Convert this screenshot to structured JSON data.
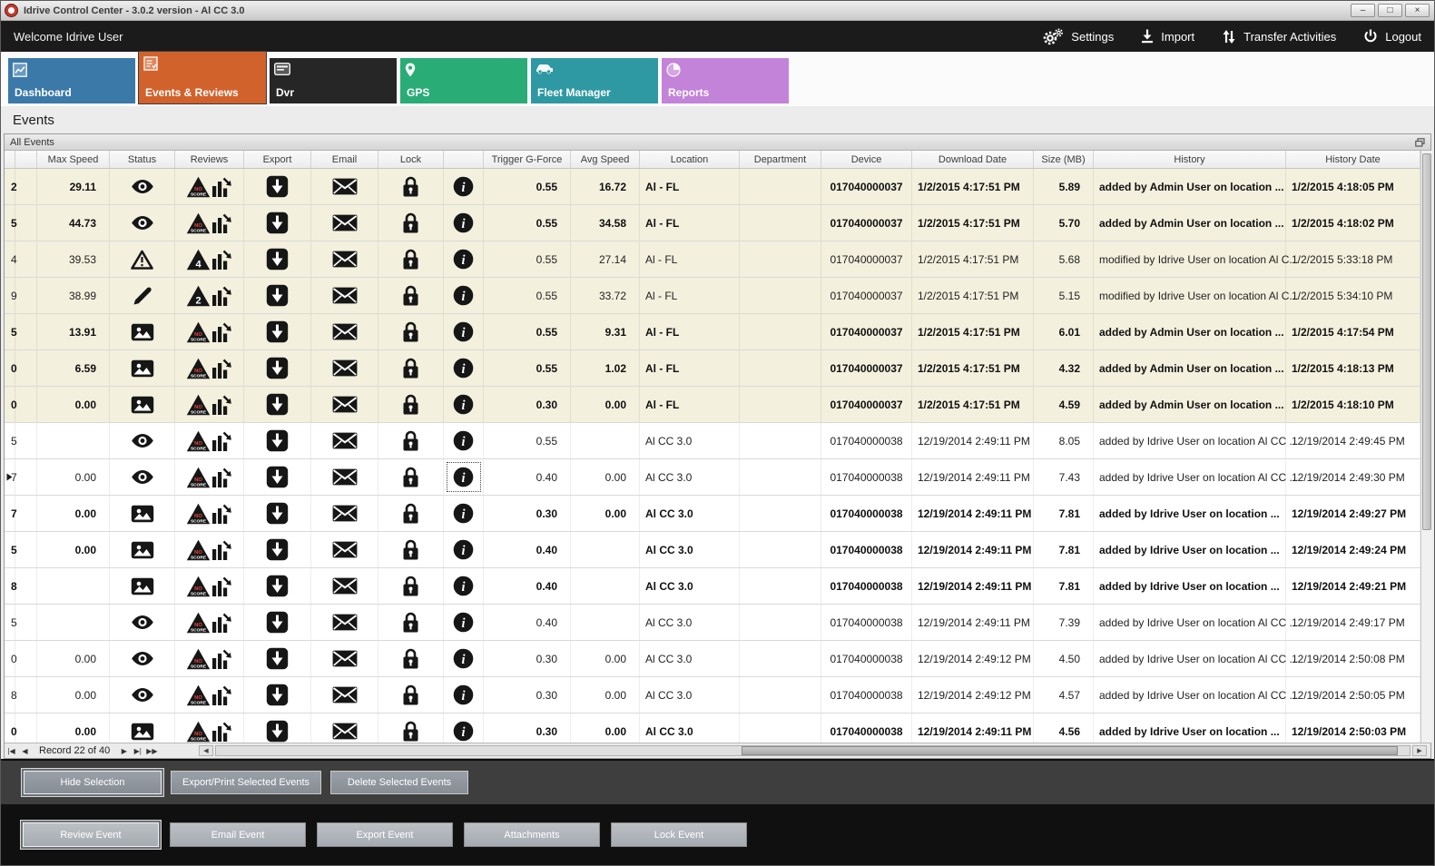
{
  "window": {
    "title": "Idrive Control Center - 3.0.2 version - Al CC 3.0",
    "controls": [
      {
        "name": "minimize",
        "glyph": "–"
      },
      {
        "name": "maximize",
        "glyph": "□"
      },
      {
        "name": "close",
        "glyph": "×"
      }
    ]
  },
  "topbar": {
    "welcome": "Welcome Idrive User",
    "menu": [
      {
        "label": "Settings",
        "icon": "gear-icon"
      },
      {
        "label": "Import",
        "icon": "import-icon"
      },
      {
        "label": "Transfer Activities",
        "icon": "transfer-icon"
      },
      {
        "label": "Logout",
        "icon": "power-icon"
      }
    ]
  },
  "tabs": [
    {
      "label": "Dashboard",
      "color": "#3b79a8",
      "icon": "line-chart-icon",
      "selected": false
    },
    {
      "label": "Events & Reviews",
      "color": "#d2622c",
      "icon": "checklist-icon",
      "selected": true
    },
    {
      "label": "Dvr",
      "color": "#262626",
      "icon": "dvr-icon",
      "selected": false
    },
    {
      "label": "GPS",
      "color": "#2aac77",
      "icon": "map-pin-icon",
      "selected": false
    },
    {
      "label": "Fleet Manager",
      "color": "#2f99a3",
      "icon": "car-icon",
      "selected": false
    },
    {
      "label": "Reports",
      "color": "#c383d9",
      "icon": "pie-chart-icon",
      "selected": false
    }
  ],
  "page": {
    "title": "Events"
  },
  "panel": {
    "title": "All Events",
    "float_icon": "float-panel-icon"
  },
  "table": {
    "columns": [
      "",
      "",
      "Max Speed",
      "Status",
      "Reviews",
      "Export",
      "Email",
      "Lock",
      "",
      "Trigger G-Force",
      "Avg Speed",
      "Location",
      "Department",
      "Device",
      "Download Date",
      "Size (MB)",
      "History",
      "History Date"
    ],
    "action_icons": {
      "export": "export-icon",
      "email": "email-icon",
      "lock": "lock-icon",
      "info": "info-icon"
    },
    "review_icons": [
      "score-triangle-icon",
      "chart-trend-icon"
    ],
    "rows": [
      {
        "id_partial": "2",
        "marker": false,
        "highlight": true,
        "bold": true,
        "max_speed": "29.11",
        "status_icon": "eye-icon",
        "review_badge": "NO SCORE",
        "trigger_g": "0.55",
        "avg_speed": "16.72",
        "location": "Al - FL",
        "department": "",
        "device": "017040000037",
        "download_date": "1/2/2015 4:17:51 PM",
        "size_mb": "5.89",
        "history": "added by Admin User on location ...",
        "history_date": "1/2/2015 4:18:05 PM",
        "info_focused": false
      },
      {
        "id_partial": "5",
        "marker": false,
        "highlight": true,
        "bold": true,
        "max_speed": "44.73",
        "status_icon": "eye-icon",
        "review_badge": "NO SCORE",
        "trigger_g": "0.55",
        "avg_speed": "34.58",
        "location": "Al - FL",
        "department": "",
        "device": "017040000037",
        "download_date": "1/2/2015 4:17:51 PM",
        "size_mb": "5.70",
        "history": "added by Admin User on location ...",
        "history_date": "1/2/2015 4:18:02 PM",
        "info_focused": false
      },
      {
        "id_partial": "4",
        "marker": false,
        "highlight": true,
        "bold": false,
        "max_speed": "39.53",
        "status_icon": "warning-icon",
        "review_badge": "4",
        "trigger_g": "0.55",
        "avg_speed": "27.14",
        "location": "Al - FL",
        "department": "",
        "device": "017040000037",
        "download_date": "1/2/2015 4:17:51 PM",
        "size_mb": "5.68",
        "history": "modified by Idrive User on location Al C...",
        "history_date": "1/2/2015 5:33:18 PM",
        "info_focused": false
      },
      {
        "id_partial": "9",
        "marker": false,
        "highlight": true,
        "bold": false,
        "max_speed": "38.99",
        "status_icon": "pencil-icon",
        "review_badge": "2",
        "trigger_g": "0.55",
        "avg_speed": "33.72",
        "location": "Al - FL",
        "department": "",
        "device": "017040000037",
        "download_date": "1/2/2015 4:17:51 PM",
        "size_mb": "5.15",
        "history": "modified by Idrive User on location Al C...",
        "history_date": "1/2/2015 5:34:10 PM",
        "info_focused": false
      },
      {
        "id_partial": "5",
        "marker": false,
        "highlight": true,
        "bold": true,
        "max_speed": "13.91",
        "status_icon": "photo-icon",
        "review_badge": "NO SCORE",
        "trigger_g": "0.55",
        "avg_speed": "9.31",
        "location": "Al - FL",
        "department": "",
        "device": "017040000037",
        "download_date": "1/2/2015 4:17:51 PM",
        "size_mb": "6.01",
        "history": "added by Admin User on location ...",
        "history_date": "1/2/2015 4:17:54 PM",
        "info_focused": false
      },
      {
        "id_partial": "0",
        "marker": false,
        "highlight": true,
        "bold": true,
        "max_speed": "6.59",
        "status_icon": "photo-icon",
        "review_badge": "NO SCORE",
        "trigger_g": "0.55",
        "avg_speed": "1.02",
        "location": "Al - FL",
        "department": "",
        "device": "017040000037",
        "download_date": "1/2/2015 4:17:51 PM",
        "size_mb": "4.32",
        "history": "added by Admin User on location ...",
        "history_date": "1/2/2015 4:18:13 PM",
        "info_focused": false
      },
      {
        "id_partial": "0",
        "marker": false,
        "highlight": true,
        "bold": true,
        "max_speed": "0.00",
        "status_icon": "photo-icon",
        "review_badge": "NO SCORE",
        "trigger_g": "0.30",
        "avg_speed": "0.00",
        "location": "Al - FL",
        "department": "",
        "device": "017040000037",
        "download_date": "1/2/2015 4:17:51 PM",
        "size_mb": "4.59",
        "history": "added by Admin User on location ...",
        "history_date": "1/2/2015 4:18:10 PM",
        "info_focused": false
      },
      {
        "id_partial": "5",
        "marker": false,
        "highlight": false,
        "bold": false,
        "max_speed": "",
        "status_icon": "eye-icon",
        "review_badge": "NO SCORE",
        "trigger_g": "0.55",
        "avg_speed": "",
        "location": "Al CC 3.0",
        "department": "",
        "device": "017040000038",
        "download_date": "12/19/2014 2:49:11 PM",
        "size_mb": "8.05",
        "history": "added by Idrive User on location Al CC ...",
        "history_date": "12/19/2014 2:49:45 PM",
        "info_focused": false
      },
      {
        "id_partial": "7",
        "marker": true,
        "highlight": false,
        "bold": false,
        "max_speed": "0.00",
        "status_icon": "eye-icon",
        "review_badge": "NO SCORE",
        "trigger_g": "0.40",
        "avg_speed": "0.00",
        "location": "Al CC 3.0",
        "department": "",
        "device": "017040000038",
        "download_date": "12/19/2014 2:49:11 PM",
        "size_mb": "7.43",
        "history": "added by Idrive User on location Al CC ...",
        "history_date": "12/19/2014 2:49:30 PM",
        "info_focused": true
      },
      {
        "id_partial": "7",
        "marker": false,
        "highlight": false,
        "bold": true,
        "max_speed": "0.00",
        "status_icon": "photo-icon",
        "review_badge": "NO SCORE",
        "trigger_g": "0.30",
        "avg_speed": "0.00",
        "location": "Al CC 3.0",
        "department": "",
        "device": "017040000038",
        "download_date": "12/19/2014 2:49:11 PM",
        "size_mb": "7.81",
        "history": "added by Idrive User on location ...",
        "history_date": "12/19/2014 2:49:27 PM",
        "info_focused": false
      },
      {
        "id_partial": "5",
        "marker": false,
        "highlight": false,
        "bold": true,
        "max_speed": "0.00",
        "status_icon": "photo-icon",
        "review_badge": "NO SCORE",
        "trigger_g": "0.40",
        "avg_speed": "",
        "location": "Al CC 3.0",
        "department": "",
        "device": "017040000038",
        "download_date": "12/19/2014 2:49:11 PM",
        "size_mb": "7.81",
        "history": "added by Idrive User on location ...",
        "history_date": "12/19/2014 2:49:24 PM",
        "info_focused": false
      },
      {
        "id_partial": "8",
        "marker": false,
        "highlight": false,
        "bold": true,
        "max_speed": "",
        "status_icon": "photo-icon",
        "review_badge": "NO SCORE",
        "trigger_g": "0.40",
        "avg_speed": "",
        "location": "Al CC 3.0",
        "department": "",
        "device": "017040000038",
        "download_date": "12/19/2014 2:49:11 PM",
        "size_mb": "7.81",
        "history": "added by Idrive User on location ...",
        "history_date": "12/19/2014 2:49:21 PM",
        "info_focused": false
      },
      {
        "id_partial": "5",
        "marker": false,
        "highlight": false,
        "bold": false,
        "max_speed": "",
        "status_icon": "eye-icon",
        "review_badge": "NO SCORE",
        "trigger_g": "0.40",
        "avg_speed": "",
        "location": "Al CC 3.0",
        "department": "",
        "device": "017040000038",
        "download_date": "12/19/2014 2:49:11 PM",
        "size_mb": "7.39",
        "history": "added by Idrive User on location Al CC ...",
        "history_date": "12/19/2014 2:49:17 PM",
        "info_focused": false
      },
      {
        "id_partial": "0",
        "marker": false,
        "highlight": false,
        "bold": false,
        "max_speed": "0.00",
        "status_icon": "eye-icon",
        "review_badge": "NO SCORE",
        "trigger_g": "0.30",
        "avg_speed": "0.00",
        "location": "Al CC 3.0",
        "department": "",
        "device": "017040000038",
        "download_date": "12/19/2014 2:49:12 PM",
        "size_mb": "4.50",
        "history": "added by Idrive User on location Al CC ...",
        "history_date": "12/19/2014 2:50:08 PM",
        "info_focused": false
      },
      {
        "id_partial": "8",
        "marker": false,
        "highlight": false,
        "bold": false,
        "max_speed": "0.00",
        "status_icon": "eye-icon",
        "review_badge": "NO SCORE",
        "trigger_g": "0.30",
        "avg_speed": "0.00",
        "location": "Al CC 3.0",
        "department": "",
        "device": "017040000038",
        "download_date": "12/19/2014 2:49:12 PM",
        "size_mb": "4.57",
        "history": "added by Idrive User on location Al CC ...",
        "history_date": "12/19/2014 2:50:05 PM",
        "info_focused": false
      },
      {
        "id_partial": "0",
        "marker": false,
        "highlight": false,
        "bold": true,
        "max_speed": "0.00",
        "status_icon": "photo-icon",
        "review_badge": "NO SCORE",
        "trigger_g": "0.30",
        "avg_speed": "0.00",
        "location": "Al CC 3.0",
        "department": "",
        "device": "017040000038",
        "download_date": "12/19/2014 2:49:11 PM",
        "size_mb": "4.56",
        "history": "added by Idrive User on location ...",
        "history_date": "12/19/2014 2:50:03 PM",
        "info_focused": false
      }
    ]
  },
  "navigator": {
    "label": "Record 22 of 40",
    "left_buttons": [
      "|◀",
      "◀"
    ],
    "right_buttons": [
      "▶",
      "▶|",
      "▶▶"
    ]
  },
  "actions": {
    "row1": [
      {
        "label": "Hide Selection",
        "focused": true
      },
      {
        "label": "Export/Print Selected Events",
        "focused": false
      },
      {
        "label": "Delete Selected  Events",
        "focused": false
      }
    ],
    "row2": [
      {
        "label": "Review Event",
        "focused": true
      },
      {
        "label": "Email Event",
        "focused": false
      },
      {
        "label": "Export Event",
        "focused": false
      },
      {
        "label": "Attachments",
        "focused": false
      },
      {
        "label": "Lock Event",
        "focused": false
      }
    ]
  }
}
